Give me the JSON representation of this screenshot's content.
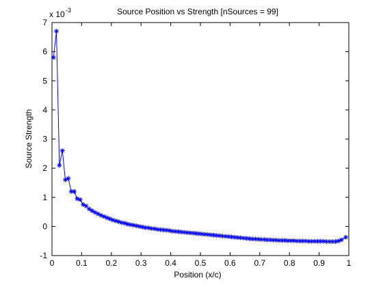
{
  "chart_data": {
    "type": "line",
    "title": "Source Position vs Strength [nSources = 99]",
    "xlabel": "Position (x/c)",
    "ylabel": "Source Strength",
    "exponent_base": "x 10",
    "exponent_power": "-3",
    "xlim": [
      0,
      1
    ],
    "ylim": [
      -1,
      7
    ],
    "y_scale_factor": 0.001,
    "xticks": [
      0,
      0.1,
      0.2,
      0.3,
      0.4,
      0.5,
      0.6,
      0.7,
      0.8,
      0.9,
      1
    ],
    "xtick_labels": [
      "0",
      "0.1",
      "0.2",
      "0.3",
      "0.4",
      "0.5",
      "0.6",
      "0.7",
      "0.8",
      "0.9",
      "1"
    ],
    "yticks": [
      -1,
      0,
      1,
      2,
      3,
      4,
      5,
      6,
      7
    ],
    "ytick_labels": [
      "-1",
      "0",
      "1",
      "2",
      "3",
      "4",
      "5",
      "6",
      "7"
    ],
    "grid": false,
    "legend": "none",
    "marker": "*",
    "line_color": "#0000ff",
    "series": [
      {
        "x": [
          0.005,
          0.015,
          0.025,
          0.035,
          0.045,
          0.055,
          0.065,
          0.075,
          0.085,
          0.095,
          0.105,
          0.115,
          0.125,
          0.135,
          0.145,
          0.155,
          0.165,
          0.175,
          0.185,
          0.195,
          0.205,
          0.215,
          0.225,
          0.235,
          0.245,
          0.255,
          0.265,
          0.275,
          0.285,
          0.295,
          0.305,
          0.315,
          0.325,
          0.335,
          0.345,
          0.355,
          0.365,
          0.375,
          0.385,
          0.395,
          0.405,
          0.415,
          0.425,
          0.435,
          0.445,
          0.455,
          0.465,
          0.475,
          0.485,
          0.495,
          0.505,
          0.515,
          0.525,
          0.535,
          0.545,
          0.555,
          0.565,
          0.575,
          0.585,
          0.595,
          0.605,
          0.615,
          0.625,
          0.635,
          0.645,
          0.655,
          0.665,
          0.675,
          0.685,
          0.695,
          0.705,
          0.715,
          0.725,
          0.735,
          0.745,
          0.755,
          0.765,
          0.775,
          0.785,
          0.795,
          0.805,
          0.815,
          0.825,
          0.835,
          0.845,
          0.855,
          0.865,
          0.875,
          0.885,
          0.895,
          0.905,
          0.915,
          0.925,
          0.935,
          0.945,
          0.955,
          0.965,
          0.975,
          0.99
        ],
        "values": [
          5.8,
          6.7,
          2.1,
          2.6,
          1.6,
          1.65,
          1.2,
          1.2,
          0.95,
          0.92,
          0.75,
          0.7,
          0.6,
          0.54,
          0.48,
          0.43,
          0.38,
          0.34,
          0.3,
          0.26,
          0.22,
          0.19,
          0.16,
          0.13,
          0.11,
          0.08,
          0.06,
          0.04,
          0.02,
          0.0,
          -0.02,
          -0.04,
          -0.05,
          -0.07,
          -0.08,
          -0.1,
          -0.11,
          -0.12,
          -0.13,
          -0.14,
          -0.16,
          -0.17,
          -0.18,
          -0.19,
          -0.2,
          -0.21,
          -0.22,
          -0.23,
          -0.24,
          -0.25,
          -0.26,
          -0.27,
          -0.28,
          -0.29,
          -0.3,
          -0.31,
          -0.32,
          -0.33,
          -0.34,
          -0.35,
          -0.36,
          -0.37,
          -0.38,
          -0.39,
          -0.4,
          -0.41,
          -0.42,
          -0.43,
          -0.43,
          -0.44,
          -0.45,
          -0.45,
          -0.46,
          -0.46,
          -0.47,
          -0.47,
          -0.48,
          -0.48,
          -0.48,
          -0.49,
          -0.49,
          -0.49,
          -0.5,
          -0.5,
          -0.5,
          -0.5,
          -0.51,
          -0.51,
          -0.51,
          -0.51,
          -0.51,
          -0.51,
          -0.52,
          -0.52,
          -0.52,
          -0.52,
          -0.5,
          -0.46,
          -0.37
        ]
      }
    ]
  }
}
